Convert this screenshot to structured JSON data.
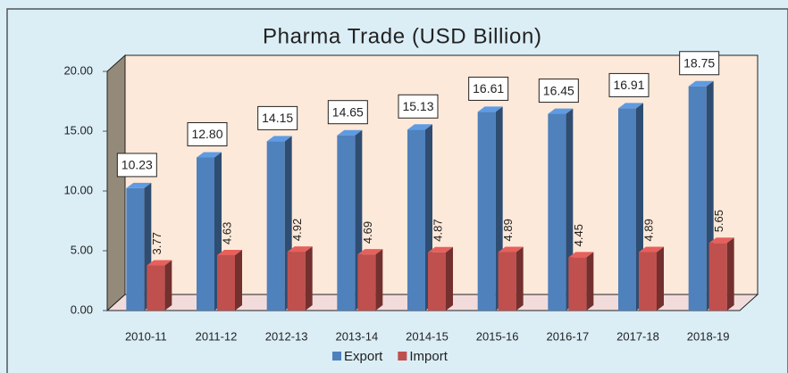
{
  "chart_data": {
    "type": "bar3d",
    "title": "Pharma Trade (USD Billion)",
    "categories": [
      "2010-11",
      "2011-12",
      "2012-13",
      "2013-14",
      "2014-15",
      "2015-16",
      "2016-17",
      "2017-18",
      "2018-19"
    ],
    "series": [
      {
        "name": "Export",
        "color": "#4f81bd",
        "values": [
          10.23,
          12.8,
          14.15,
          14.65,
          15.13,
          16.61,
          16.45,
          16.91,
          18.75
        ],
        "value_labels": [
          "10.23",
          "12.80",
          "14.15",
          "14.65",
          "15.13",
          "16.61",
          "16.45",
          "16.91",
          "18.75"
        ]
      },
      {
        "name": "Import",
        "color": "#c0504d",
        "values": [
          3.77,
          4.63,
          4.92,
          4.69,
          4.87,
          4.89,
          4.45,
          4.89,
          5.65
        ]
      }
    ],
    "ylim": [
      0,
      20
    ],
    "yticks": [
      {
        "value": 0,
        "label": "0.00"
      },
      {
        "value": 5,
        "label": "5.00"
      },
      {
        "value": 10,
        "label": "10.00"
      },
      {
        "value": 15,
        "label": "15.00"
      },
      {
        "value": 20,
        "label": "20.00"
      }
    ],
    "grid": false,
    "legend": "bottom"
  }
}
